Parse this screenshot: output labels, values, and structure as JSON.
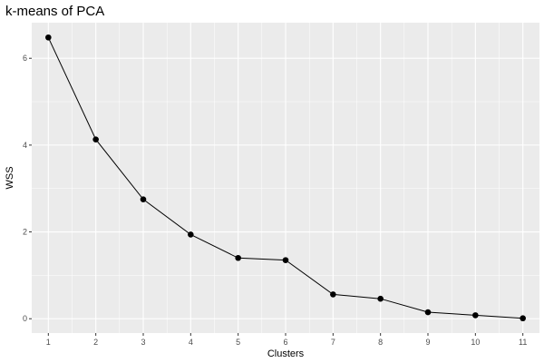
{
  "chart_data": {
    "type": "line",
    "title": "k-means of PCA",
    "xlabel": "Clusters",
    "ylabel": "WSS",
    "x": [
      1,
      2,
      3,
      4,
      5,
      6,
      7,
      8,
      9,
      10,
      11
    ],
    "series": [
      {
        "values": [
          6.48,
          4.13,
          2.75,
          1.94,
          1.4,
          1.35,
          0.56,
          0.46,
          0.15,
          0.08,
          0.01
        ]
      }
    ],
    "xlim": [
      0.65,
      11.35
    ],
    "ylim": [
      -0.33,
      6.82
    ],
    "x_ticks": [
      1,
      2,
      3,
      4,
      5,
      6,
      7,
      8,
      9,
      10,
      11
    ],
    "x_tick_labels": [
      "1",
      "2",
      "3",
      "4",
      "5",
      "6",
      "7",
      "8",
      "9",
      "10",
      "11"
    ],
    "y_ticks": [
      0,
      2,
      4,
      6
    ],
    "y_tick_labels": [
      "0",
      "2",
      "4",
      "6"
    ],
    "grid": true,
    "colors": {
      "panel": "#ebebeb",
      "grid": "#ffffff",
      "line": "#000000",
      "point": "#000000"
    }
  }
}
